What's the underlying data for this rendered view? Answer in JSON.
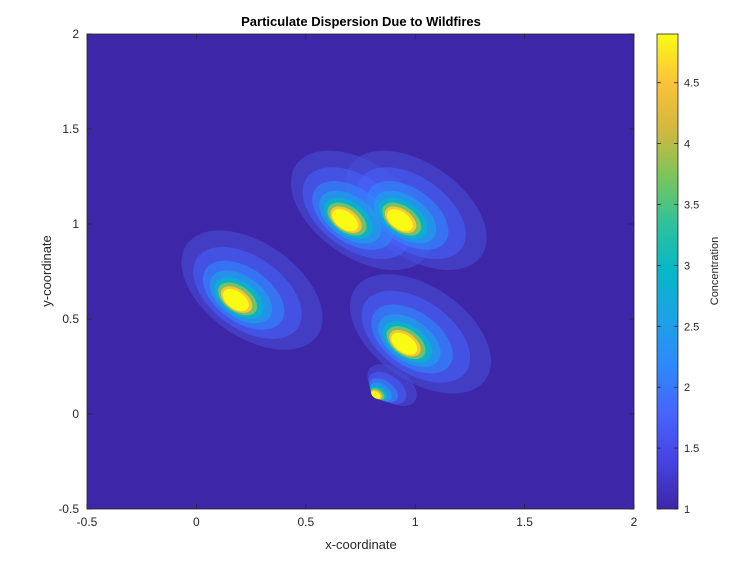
{
  "chart_data": {
    "type": "heatmap",
    "title": "Particulate Dispersion Due to Wildfires",
    "xlabel": "x-coordinate",
    "ylabel": "y-coordinate",
    "xlim": [
      -0.5,
      2
    ],
    "ylim": [
      -0.5,
      2
    ],
    "x_ticks": [
      "-0.5",
      "0",
      "0.5",
      "1",
      "1.5",
      "2"
    ],
    "y_ticks": [
      "-0.5",
      "0",
      "0.5",
      "1",
      "1.5",
      "2"
    ],
    "colorbar": {
      "label": "Concentration",
      "range": [
        1,
        4.9
      ],
      "ticks": [
        "1",
        "1.5",
        "2",
        "2.5",
        "3",
        "3.5",
        "4",
        "4.5"
      ],
      "colormap": "parula"
    },
    "sources": [
      {
        "x": 0.18,
        "y": 0.6,
        "peak": 4.9
      },
      {
        "x": 0.68,
        "y": 1.02,
        "peak": 4.9
      },
      {
        "x": 0.93,
        "y": 1.02,
        "peak": 4.9
      },
      {
        "x": 0.95,
        "y": 0.37,
        "peak": 4.9
      },
      {
        "x": 0.82,
        "y": 0.1,
        "peak": 4.9
      }
    ],
    "grid": false
  }
}
